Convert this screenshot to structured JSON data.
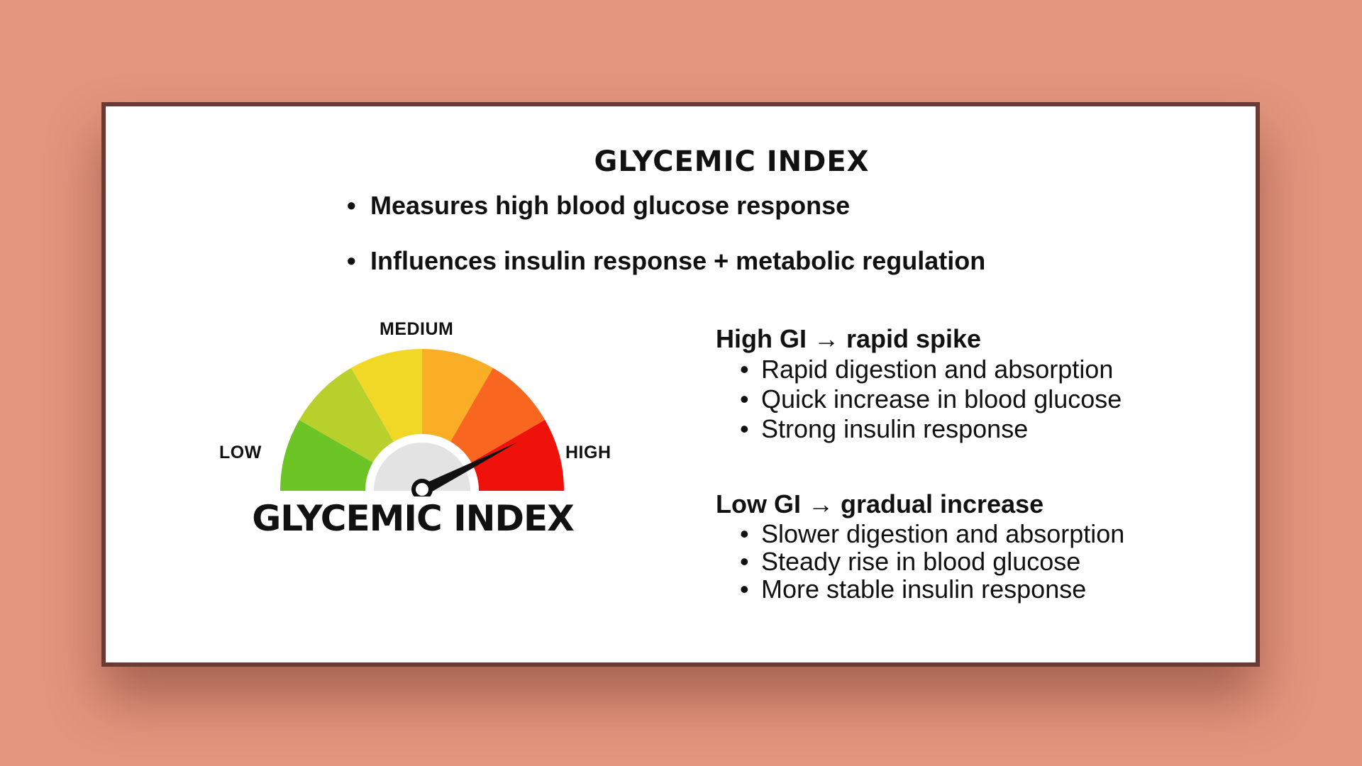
{
  "slide": {
    "title": "GLYCEMIC INDEX",
    "intro_bullets": [
      "Measures high blood glucose response",
      "Influences insulin response + metabolic regulation"
    ]
  },
  "gauge": {
    "labels": {
      "low": "LOW",
      "medium": "MEDIUM",
      "high": "HIGH"
    },
    "title": "GLYCEMIC INDEX",
    "segment_colors": [
      "#6CC425",
      "#B8D02C",
      "#F2D826",
      "#F9AE25",
      "#F8661F",
      "#EE120A"
    ],
    "needle_level_fraction": 0.85,
    "needle_color": "#111111",
    "hub_color": "#E3E3E3"
  },
  "high_gi": {
    "heading": "High GI → rapid spike",
    "points": [
      "Rapid digestion and absorption",
      "Quick increase in blood glucose",
      "Strong insulin response"
    ]
  },
  "low_gi": {
    "heading": "Low GI → gradual increase",
    "points": [
      "Slower digestion and absorption",
      "Steady rise in blood glucose",
      "More stable insulin response"
    ]
  }
}
